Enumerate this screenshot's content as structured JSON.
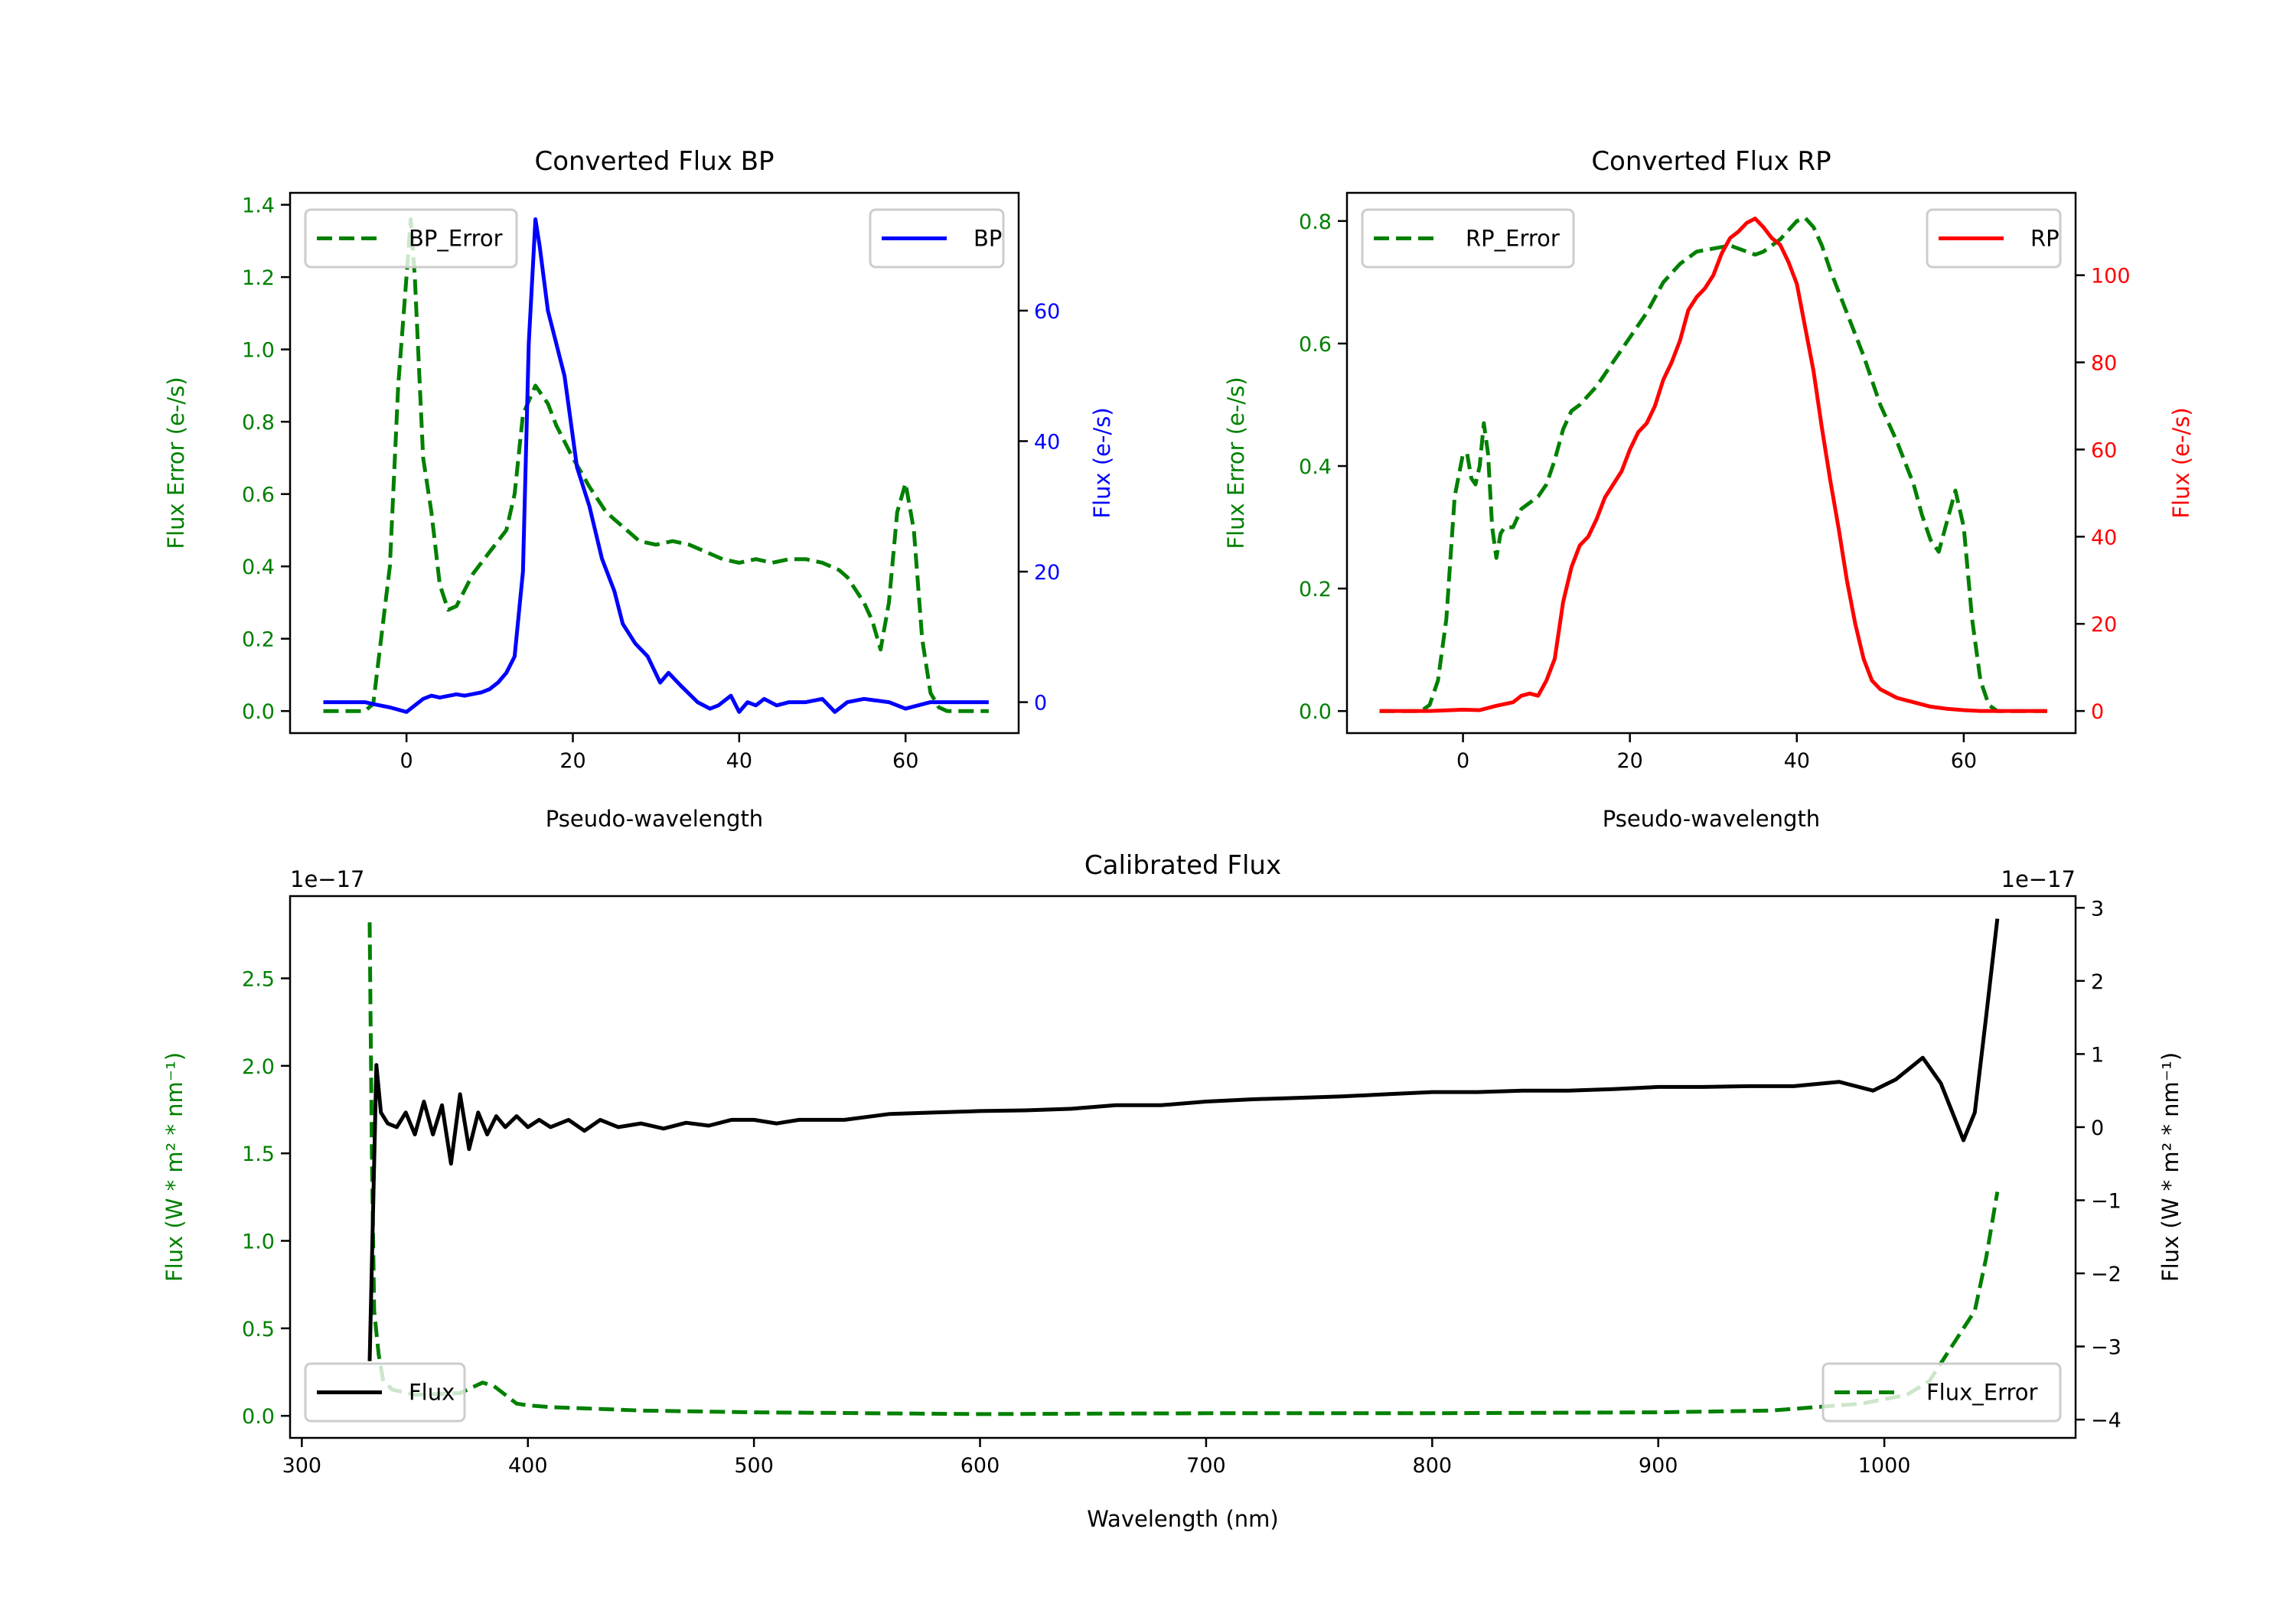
{
  "chart_data": [
    {
      "id": "bp",
      "type": "line",
      "title": "Converted Flux BP",
      "xlabel": "Pseudo-wavelength",
      "xlim": [
        -14,
        73.6
      ],
      "xticks": [
        0,
        20,
        40,
        60
      ],
      "xtick_labels": [
        "0",
        "20",
        "40",
        "60"
      ],
      "left_axis": {
        "label": "Flux Error (e-/s)",
        "color": "#008000",
        "ylim": [
          -0.061,
          1.433
        ],
        "ticks": [
          0,
          0.2,
          0.4,
          0.6,
          0.8,
          1.0,
          1.2,
          1.4
        ],
        "tick_labels": [
          "0.0",
          "0.2",
          "0.4",
          "0.6",
          "0.8",
          "1.0",
          "1.2",
          "1.4"
        ],
        "series": [
          {
            "name": "BP_Error",
            "color": "#008000",
            "style": "dashed",
            "legend": "upper left",
            "x": [
              -10,
              -5,
              -4,
              -2,
              -1,
              0,
              0.5,
              1,
              2,
              3,
              4,
              5,
              6,
              8,
              10,
              12,
              13,
              14,
              15.5,
              17,
              18,
              20,
              22,
              24,
              26,
              28,
              30,
              32,
              34,
              36,
              38,
              40,
              42,
              44,
              46,
              48,
              50,
              52,
              53,
              55,
              56,
              57,
              58,
              59,
              60,
              61,
              62,
              63,
              64,
              65,
              70
            ],
            "y": [
              0,
              0,
              0.02,
              0.4,
              0.9,
              1.2,
              1.36,
              1.2,
              0.7,
              0.55,
              0.35,
              0.28,
              0.29,
              0.38,
              0.44,
              0.5,
              0.6,
              0.82,
              0.9,
              0.85,
              0.79,
              0.7,
              0.62,
              0.55,
              0.51,
              0.47,
              0.46,
              0.47,
              0.46,
              0.44,
              0.42,
              0.41,
              0.42,
              0.41,
              0.42,
              0.42,
              0.41,
              0.39,
              0.37,
              0.3,
              0.25,
              0.17,
              0.3,
              0.55,
              0.63,
              0.5,
              0.2,
              0.05,
              0.01,
              0,
              0
            ]
          }
        ]
      },
      "right_axis": {
        "label": "Flux (e-/s)",
        "color": "#0000ff",
        "ylim": [
          -4.74,
          78.05
        ],
        "ticks": [
          0,
          20,
          40,
          60
        ],
        "tick_labels": [
          "0",
          "20",
          "40",
          "60"
        ],
        "series": [
          {
            "name": "BP",
            "color": "#0000ff",
            "style": "solid",
            "legend": "upper right",
            "x": [
              -10,
              -5,
              -4,
              -2,
              0,
              2,
              3,
              4,
              6,
              7,
              9,
              10,
              11,
              12,
              13,
              14,
              14.7,
              15.5,
              16,
              17,
              19,
              20.5,
              22,
              23.5,
              25,
              26,
              27.5,
              29,
              30.5,
              31.5,
              33,
              35,
              36.5,
              37.5,
              39,
              40,
              41,
              42,
              43,
              44.5,
              46,
              48,
              50,
              51.5,
              53,
              55,
              58,
              60,
              63,
              70
            ],
            "y": [
              0,
              0,
              -0.3,
              -0.8,
              -1.5,
              0.5,
              1,
              0.7,
              1.2,
              1,
              1.5,
              2,
              3,
              4.5,
              7,
              20,
              55,
              74,
              70,
              60,
              50,
              36,
              30,
              22,
              17,
              12,
              9,
              7,
              3,
              4.5,
              2.5,
              0,
              -1,
              -0.5,
              1,
              -1.5,
              0,
              -0.5,
              0.5,
              -0.5,
              0,
              0,
              0.5,
              -1.5,
              0,
              0.5,
              0,
              -1,
              0,
              0
            ]
          }
        ]
      }
    },
    {
      "id": "rp",
      "type": "line",
      "title": "Converted Flux RP",
      "xlabel": "Pseudo-wavelength",
      "xlim": [
        -13.9,
        73.4
      ],
      "xticks": [
        0,
        20,
        40,
        60
      ],
      "xtick_labels": [
        "0",
        "20",
        "40",
        "60"
      ],
      "left_axis": {
        "label": "Flux Error (e-/s)",
        "color": "#008000",
        "ylim": [
          -0.036,
          0.846
        ],
        "ticks": [
          0,
          0.2,
          0.4,
          0.6,
          0.8
        ],
        "tick_labels": [
          "0.0",
          "0.2",
          "0.4",
          "0.6",
          "0.8"
        ],
        "series": [
          {
            "name": "RP_Error",
            "color": "#008000",
            "style": "dashed",
            "legend": "upper left",
            "x": [
              -10,
              -5,
              -4,
              -3,
              -2,
              -1,
              0,
              0.5,
              1,
              1.5,
              2,
              2.5,
              3,
              3.5,
              4,
              4.5,
              5,
              6,
              7,
              8,
              9,
              10,
              11,
              12,
              13,
              14,
              16,
              18,
              20,
              22,
              24,
              26,
              28,
              30,
              32,
              34,
              35,
              36,
              38,
              40,
              41,
              42,
              43,
              44,
              46,
              48,
              50,
              52,
              54,
              55,
              56,
              57,
              58,
              59,
              60,
              61,
              62,
              63,
              64,
              70
            ],
            "y": [
              0,
              0,
              0.01,
              0.05,
              0.15,
              0.35,
              0.42,
              0.42,
              0.38,
              0.37,
              0.4,
              0.47,
              0.42,
              0.3,
              0.25,
              0.29,
              0.3,
              0.3,
              0.33,
              0.34,
              0.35,
              0.37,
              0.41,
              0.46,
              0.49,
              0.5,
              0.53,
              0.57,
              0.61,
              0.65,
              0.7,
              0.73,
              0.75,
              0.755,
              0.76,
              0.75,
              0.745,
              0.75,
              0.77,
              0.8,
              0.805,
              0.79,
              0.76,
              0.72,
              0.65,
              0.58,
              0.5,
              0.44,
              0.37,
              0.32,
              0.28,
              0.26,
              0.31,
              0.36,
              0.3,
              0.15,
              0.05,
              0.01,
              0,
              0
            ]
          }
        ]
      },
      "right_axis": {
        "label": "Flux (e-/s)",
        "color": "#ff0000",
        "ylim": [
          -5.07,
          118.9
        ],
        "ticks": [
          0,
          20,
          40,
          60,
          80,
          100
        ],
        "tick_labels": [
          "0",
          "20",
          "40",
          "60",
          "80",
          "100"
        ],
        "series": [
          {
            "name": "RP",
            "color": "#ff0000",
            "style": "solid",
            "legend": "upper right",
            "x": [
              -10,
              -4,
              0,
              2,
              4,
              6,
              7,
              8,
              9,
              10,
              11,
              12,
              13,
              14,
              15,
              16,
              17,
              18,
              19,
              20,
              21,
              22,
              23,
              24,
              25,
              26,
              27,
              28,
              29,
              30,
              31,
              32,
              33,
              34,
              35,
              36,
              37,
              38,
              39,
              40,
              41,
              42,
              43,
              44,
              45,
              46,
              47,
              48,
              49,
              50,
              52,
              54,
              56,
              58,
              60,
              62,
              70
            ],
            "y": [
              0,
              0,
              0.3,
              0.2,
              1.2,
              2,
              3.5,
              4,
              3.5,
              7,
              12,
              25,
              33,
              38,
              40,
              44,
              49,
              52,
              55,
              60,
              64,
              66,
              70,
              76,
              80,
              85,
              92,
              95,
              97,
              100,
              105,
              108.5,
              110,
              112,
              113,
              111,
              108.5,
              107,
              103,
              98,
              88,
              78,
              65,
              53,
              42,
              30,
              20,
              12,
              7,
              5,
              3,
              2,
              1,
              0.5,
              0.2,
              0,
              0
            ]
          }
        ]
      }
    },
    {
      "id": "cal",
      "type": "line",
      "title": "Calibrated Flux",
      "xlabel": "Wavelength (nm)",
      "xlim": [
        294.8,
        1084.6
      ],
      "xticks": [
        300,
        400,
        500,
        600,
        700,
        800,
        900,
        1000
      ],
      "xtick_labels": [
        "300",
        "400",
        "500",
        "600",
        "700",
        "800",
        "900",
        "1000"
      ],
      "left_axis": {
        "label": "Flux (W * m² * nm⁻¹)",
        "color": "#008000",
        "ylim": [
          -0.126,
          2.97
        ],
        "offset_label": "1e−17",
        "ticks": [
          0,
          0.5,
          1.0,
          1.5,
          2.0,
          2.5
        ],
        "tick_labels": [
          "0.0",
          "0.5",
          "1.0",
          "1.5",
          "2.0",
          "2.5"
        ],
        "series": [
          {
            "name": "Flux_Error",
            "color": "#008000",
            "style": "dashed",
            "legend": "lower right",
            "x": [
              330,
              331,
              332,
              334,
              336,
              340,
              350,
              370,
              380,
              385,
              390,
              395,
              400,
              410,
              430,
              450,
              500,
              600,
              700,
              800,
              900,
              950,
              990,
              1010,
              1020,
              1030,
              1040,
              1045,
              1050
            ],
            "y": [
              2.82,
              1.5,
              0.6,
              0.35,
              0.2,
              0.15,
              0.12,
              0.13,
              0.19,
              0.17,
              0.12,
              0.07,
              0.06,
              0.05,
              0.04,
              0.03,
              0.02,
              0.01,
              0.015,
              0.015,
              0.02,
              0.03,
              0.07,
              0.12,
              0.2,
              0.4,
              0.6,
              0.9,
              1.28
            ]
          }
        ]
      },
      "right_axis": {
        "label": "Flux (W * m² * nm⁻¹)",
        "color": "#000000",
        "ylim": [
          -4.25,
          3.16
        ],
        "offset_label": "1e−17",
        "ticks": [
          -4,
          -3,
          -2,
          -1,
          0,
          1,
          2,
          3
        ],
        "tick_labels": [
          "−4",
          "−3",
          "−2",
          "−1",
          "0",
          "1",
          "2",
          "3"
        ],
        "series": [
          {
            "name": "Flux",
            "color": "#000000",
            "style": "solid",
            "legend": "lower left",
            "x": [
              330,
              333,
              335,
              338,
              342,
              346,
              350,
              354,
              358,
              362,
              366,
              370,
              374,
              378,
              382,
              386,
              390,
              395,
              400,
              405,
              410,
              418,
              425,
              432,
              440,
              450,
              460,
              470,
              480,
              490,
              500,
              510,
              520,
              540,
              560,
              580,
              600,
              620,
              640,
              660,
              680,
              700,
              720,
              740,
              760,
              780,
              800,
              820,
              840,
              860,
              880,
              900,
              920,
              940,
              960,
              980,
              995,
              1005,
              1017,
              1025,
              1035,
              1040,
              1045,
              1050
            ],
            "y": [
              -3.2,
              0.85,
              0.2,
              0.05,
              0,
              0.2,
              -0.1,
              0.35,
              -0.1,
              0.3,
              -0.5,
              0.45,
              -0.3,
              0.2,
              -0.1,
              0.15,
              0,
              0.15,
              0,
              0.1,
              0,
              0.1,
              -0.05,
              0.1,
              0,
              0.05,
              -0.02,
              0.06,
              0.02,
              0.1,
              0.1,
              0.05,
              0.1,
              0.1,
              0.18,
              0.2,
              0.22,
              0.23,
              0.25,
              0.3,
              0.3,
              0.35,
              0.38,
              0.4,
              0.42,
              0.45,
              0.48,
              0.48,
              0.5,
              0.5,
              0.52,
              0.55,
              0.55,
              0.56,
              0.56,
              0.62,
              0.5,
              0.65,
              0.95,
              0.6,
              -0.18,
              0.2,
              1.5,
              2.85
            ]
          }
        ]
      }
    }
  ]
}
